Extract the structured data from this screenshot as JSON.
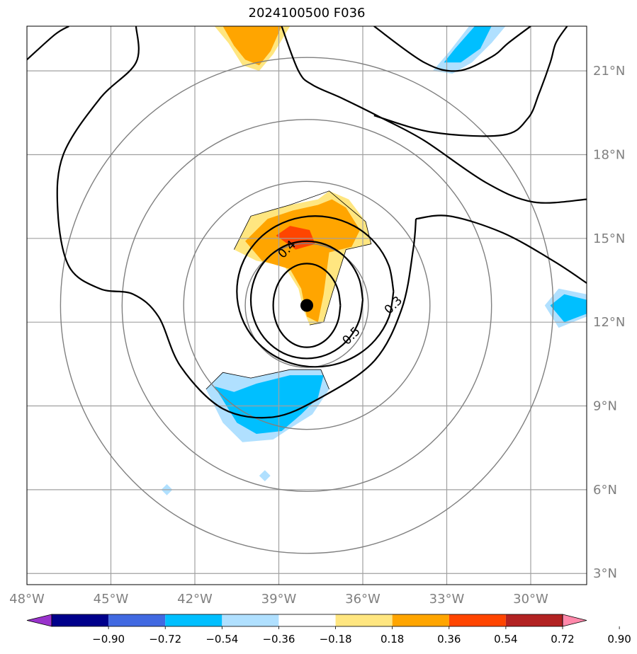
{
  "chart_data": {
    "type": "contour",
    "title": "2024100500 F036",
    "projection": "map",
    "lon_ticks": [
      -48,
      -45,
      -42,
      -39,
      -36,
      -33,
      -30
    ],
    "lon_labels": [
      "48°W",
      "45°W",
      "42°W",
      "39°W",
      "36°W",
      "33°W",
      "30°W"
    ],
    "lat_ticks": [
      3,
      6,
      9,
      12,
      15,
      18,
      21
    ],
    "lat_labels": [
      "3°N",
      "6°N",
      "9°N",
      "12°N",
      "15°N",
      "18°N",
      "21°N"
    ],
    "lon_range": [
      -48,
      -28
    ],
    "lat_range": [
      2.6,
      22.6
    ],
    "grid": true,
    "storm_center": {
      "lon": -38.0,
      "lat": 12.6
    },
    "range_rings_deg": [
      2,
      4,
      6,
      8
    ],
    "contour_levels": [
      0.3,
      0.4,
      0.5
    ],
    "contour_labels": [
      {
        "text": "0.4",
        "lon": -38.7,
        "lat": 14.6
      },
      {
        "text": "0.5",
        "lon": -36.4,
        "lat": 11.5
      },
      {
        "text": "0.3",
        "lon": -34.9,
        "lat": 12.6
      }
    ],
    "colorbar": {
      "ticks": [
        "−0.90",
        "−0.72",
        "−0.54",
        "−0.36",
        "−0.18",
        "0.18",
        "0.36",
        "0.54",
        "0.72",
        "0.90"
      ],
      "colors": [
        "#9932cc",
        "#00008b",
        "#4169e1",
        "#00bfff",
        "#b0e0ff",
        "#ffffff",
        "#ffe680",
        "#ffa500",
        "#ff4500",
        "#b22222",
        "#ff88aa"
      ],
      "extend": "both"
    }
  }
}
